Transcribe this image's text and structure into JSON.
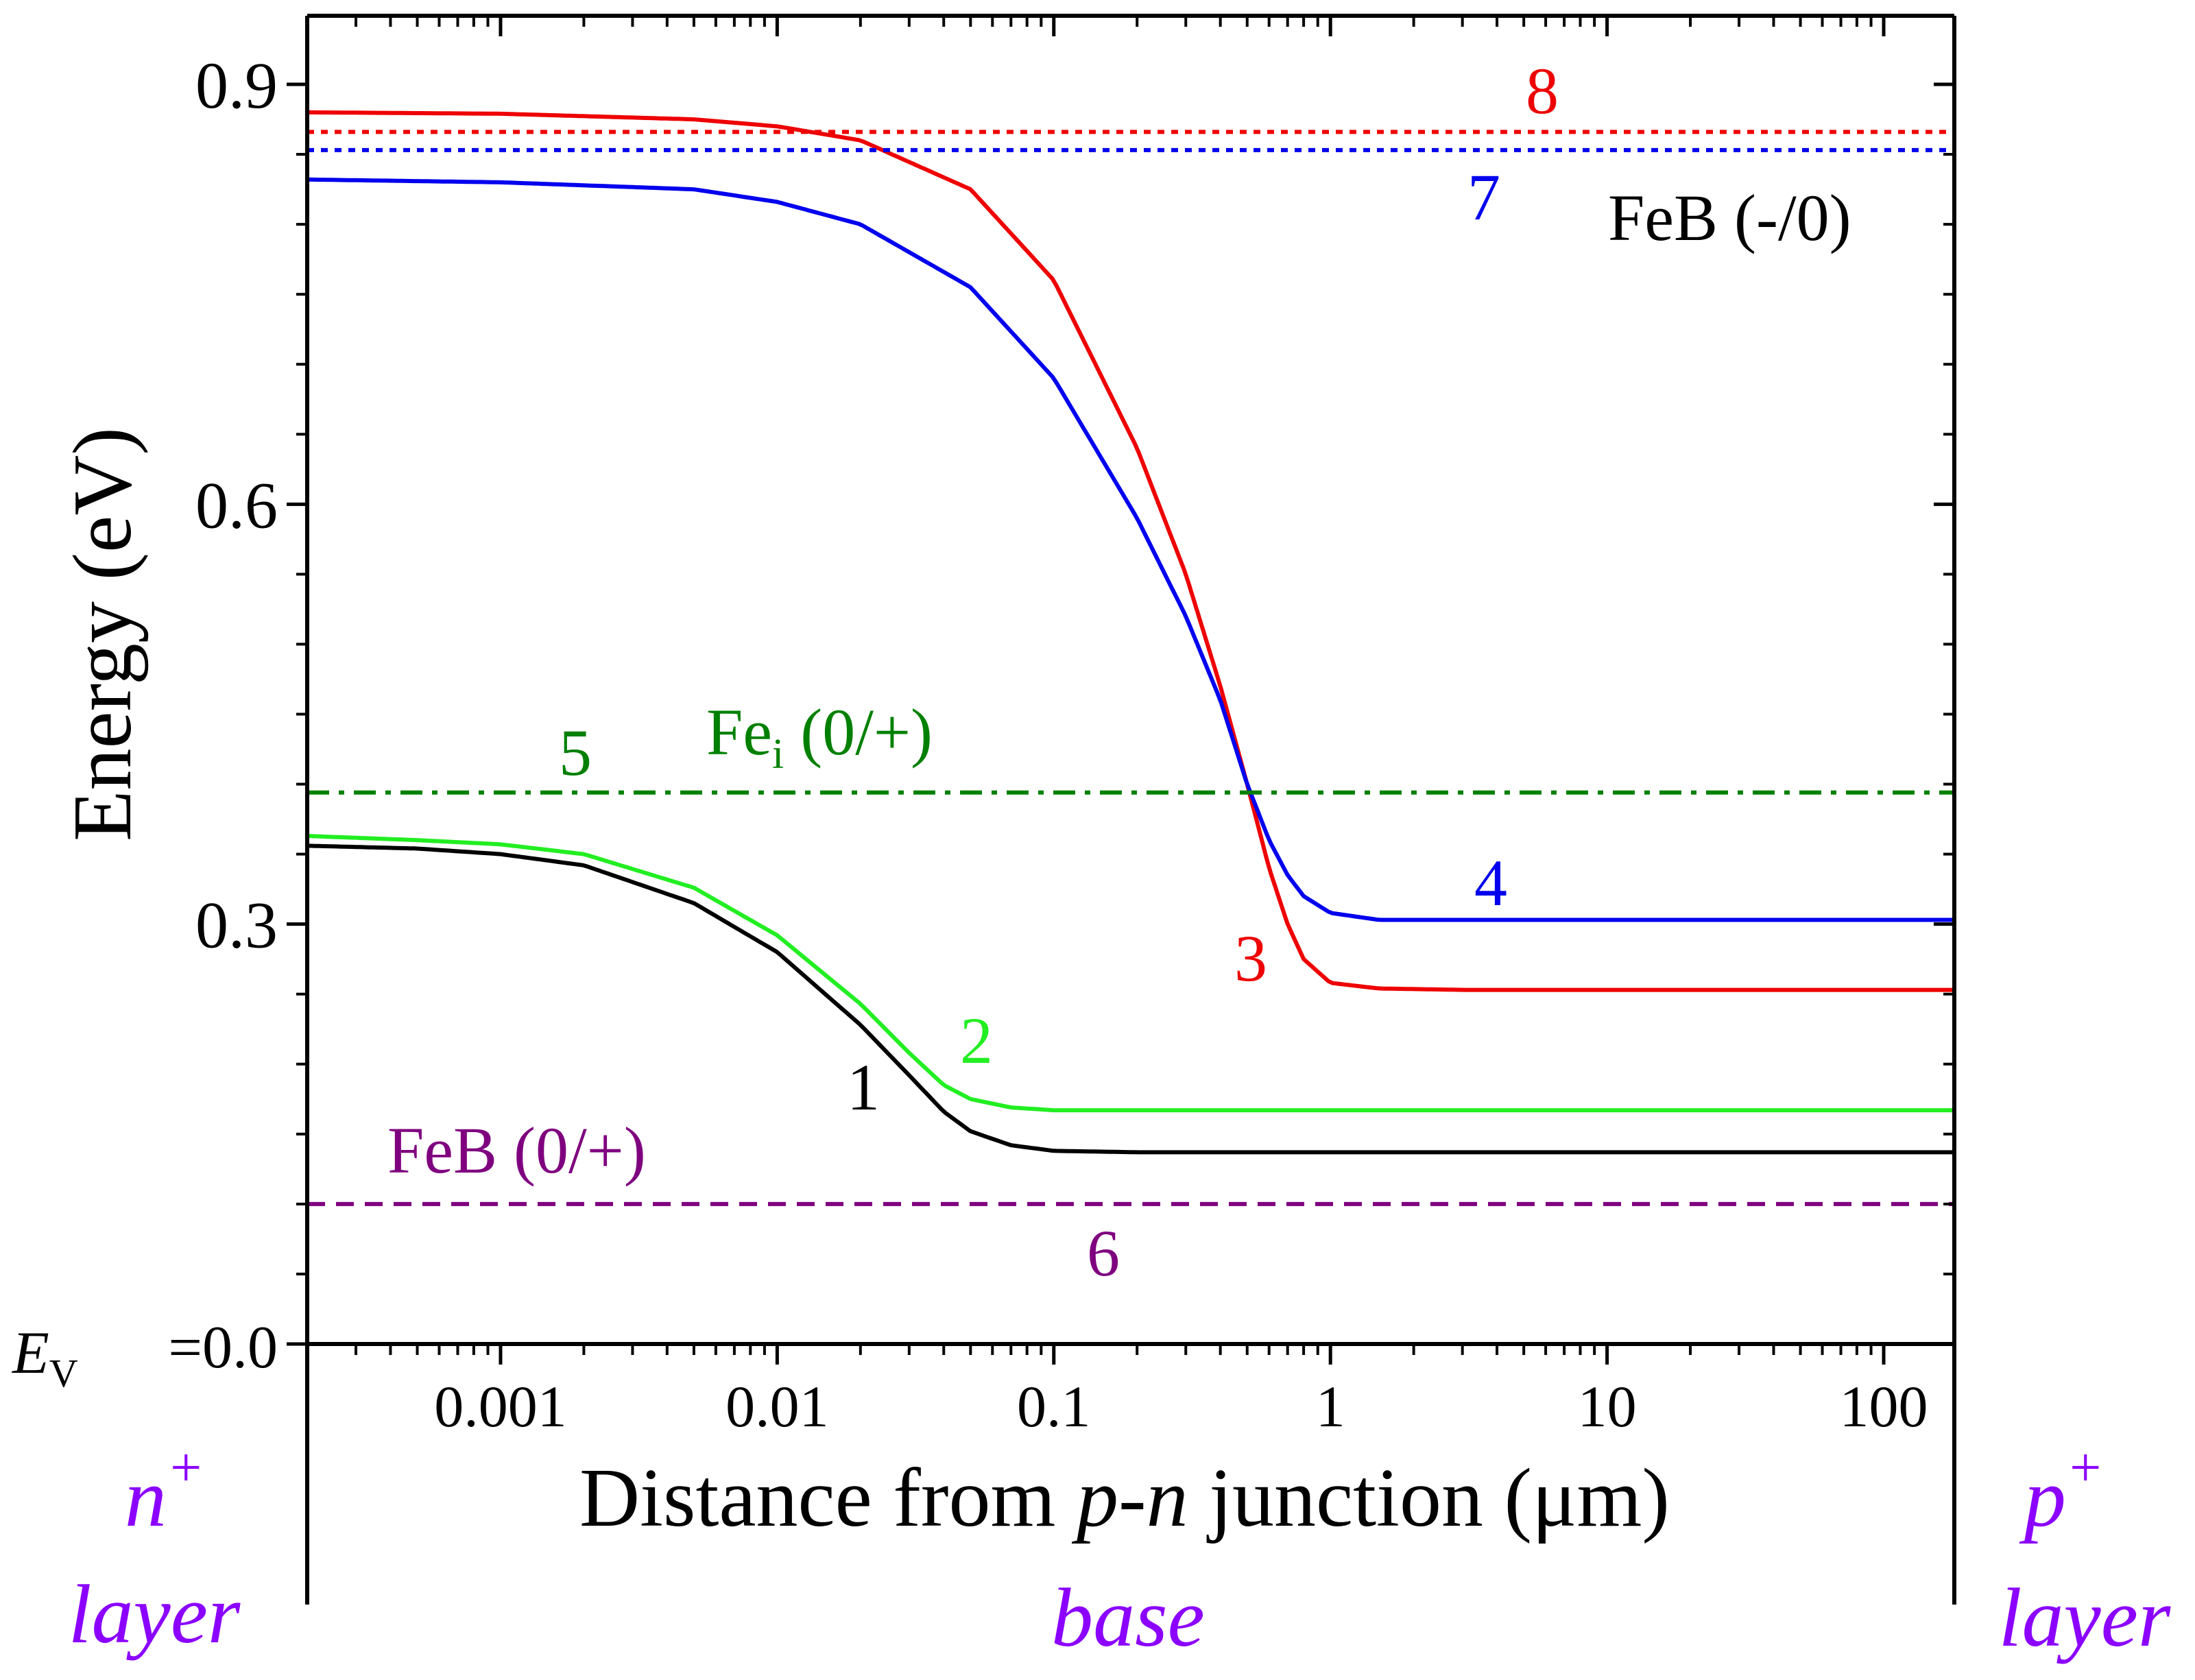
{
  "chart_data": {
    "type": "line",
    "xlabel_parts": [
      "Distance from ",
      "p",
      "-",
      "n",
      " junction (μm)"
    ],
    "ylabel": "Energy (eV)",
    "x_scale": "log",
    "xlim": [
      0.0002,
      180
    ],
    "ylim": [
      0,
      0.95
    ],
    "x_ticks": [
      {
        "value": 0.001,
        "label": "0.001"
      },
      {
        "value": 0.01,
        "label": "0.01"
      },
      {
        "value": 0.1,
        "label": "0.1"
      },
      {
        "value": 1,
        "label": "1"
      },
      {
        "value": 10,
        "label": "10"
      },
      {
        "value": 100,
        "label": "100"
      }
    ],
    "y_ticks": [
      {
        "value": 0.9,
        "label": "0.9"
      },
      {
        "value": 0.6,
        "label": "0.6"
      },
      {
        "value": 0.3,
        "label": "0.3"
      },
      {
        "value": 0.0,
        "label": "=0.0"
      }
    ],
    "y_origin_label": {
      "main": "E",
      "sub": "V"
    },
    "colors": {
      "black": "#000000",
      "green": "#22ee22",
      "red": "#ee0000",
      "blue": "#0000ee",
      "dark_green": "#008000",
      "purple": "#7f007f",
      "violet": "#8b00ff"
    },
    "series": [
      {
        "id": "1",
        "label": "1",
        "color": "#000000",
        "style": "solid",
        "x": [
          0.0002,
          0.0005,
          0.001,
          0.002,
          0.005,
          0.01,
          0.02,
          0.03,
          0.04,
          0.05,
          0.07,
          0.1,
          0.2,
          1,
          10,
          180
        ],
        "y": [
          0.356,
          0.354,
          0.35,
          0.342,
          0.315,
          0.28,
          0.228,
          0.192,
          0.166,
          0.152,
          0.142,
          0.138,
          0.137,
          0.137,
          0.137,
          0.137
        ]
      },
      {
        "id": "2",
        "label": "2",
        "color": "#22ee22",
        "style": "solid",
        "x": [
          0.0002,
          0.0005,
          0.001,
          0.002,
          0.005,
          0.01,
          0.02,
          0.03,
          0.04,
          0.05,
          0.07,
          0.1,
          0.2,
          1,
          10,
          180
        ],
        "y": [
          0.363,
          0.36,
          0.357,
          0.35,
          0.326,
          0.292,
          0.243,
          0.208,
          0.185,
          0.175,
          0.169,
          0.167,
          0.167,
          0.167,
          0.167,
          0.167
        ]
      },
      {
        "id": "3",
        "label": "3",
        "color": "#ee0000",
        "style": "solid",
        "x": [
          0.0002,
          0.001,
          0.005,
          0.01,
          0.02,
          0.05,
          0.1,
          0.2,
          0.3,
          0.4,
          0.5,
          0.6,
          0.7,
          0.8,
          1.0,
          1.5,
          3,
          10,
          180
        ],
        "y": [
          0.88,
          0.879,
          0.875,
          0.87,
          0.86,
          0.825,
          0.76,
          0.64,
          0.55,
          0.47,
          0.4,
          0.34,
          0.3,
          0.275,
          0.258,
          0.254,
          0.253,
          0.253,
          0.253
        ]
      },
      {
        "id": "4",
        "label": "4",
        "color": "#0000ee",
        "style": "solid",
        "x": [
          0.0002,
          0.001,
          0.005,
          0.01,
          0.02,
          0.05,
          0.1,
          0.2,
          0.3,
          0.4,
          0.5,
          0.6,
          0.7,
          0.8,
          1.0,
          1.5,
          3,
          10,
          180
        ],
        "y": [
          0.832,
          0.83,
          0.825,
          0.816,
          0.8,
          0.755,
          0.69,
          0.59,
          0.52,
          0.46,
          0.4,
          0.36,
          0.335,
          0.32,
          0.308,
          0.303,
          0.303,
          0.303,
          0.303
        ]
      },
      {
        "id": "5",
        "label": "5",
        "color": "#008000",
        "style": "dashdot",
        "x": [
          0.0002,
          180
        ],
        "y": [
          0.394,
          0.394
        ]
      },
      {
        "id": "6",
        "label": "6",
        "color": "#7f007f",
        "style": "dash",
        "x": [
          0.0002,
          180
        ],
        "y": [
          0.1,
          0.1
        ]
      },
      {
        "id": "7",
        "label": "7",
        "color": "#0000ee",
        "style": "dot",
        "x": [
          0.0002,
          180
        ],
        "y": [
          0.853,
          0.853
        ]
      },
      {
        "id": "8",
        "label": "8",
        "color": "#ee0000",
        "style": "dot",
        "x": [
          0.0002,
          180
        ],
        "y": [
          0.866,
          0.866
        ]
      }
    ],
    "annotations": {
      "feb_minus": "FeB (-/0)",
      "fei_main": "Fe",
      "fei_sub": "i",
      "fei_rest": " (0/+)",
      "feb_plus": "FeB (0/+)"
    },
    "regions": {
      "n_main": "n",
      "n_sup": "+",
      "n_layer": "layer",
      "base": "base",
      "p_main": "p",
      "p_sup": "+",
      "p_layer": "layer"
    }
  }
}
